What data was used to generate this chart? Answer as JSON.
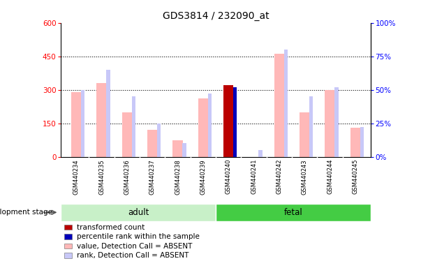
{
  "title": "GDS3814 / 232090_at",
  "samples": [
    "GSM440234",
    "GSM440235",
    "GSM440236",
    "GSM440237",
    "GSM440238",
    "GSM440239",
    "GSM440240",
    "GSM440241",
    "GSM440242",
    "GSM440243",
    "GSM440244",
    "GSM440245"
  ],
  "values": [
    290,
    330,
    200,
    120,
    75,
    260,
    320,
    0,
    460,
    200,
    300,
    130
  ],
  "ranks": [
    50,
    65,
    45,
    25,
    10,
    47,
    52,
    5,
    80,
    45,
    52,
    22
  ],
  "detection": [
    "A",
    "A",
    "A",
    "A",
    "A",
    "A",
    "P",
    "A",
    "A",
    "A",
    "A",
    "A"
  ],
  "ylim_left": [
    0,
    600
  ],
  "ylim_right": [
    0,
    100
  ],
  "yticks_left": [
    0,
    150,
    300,
    450,
    600
  ],
  "yticks_right": [
    0,
    25,
    50,
    75,
    100
  ],
  "color_absent_val": "#ffb8b8",
  "color_absent_rank": "#c8c8f8",
  "color_present_val": "#bb0000",
  "color_present_rank": "#0000bb",
  "tick_bg": "#cccccc",
  "adult_bg": "#c8f0c8",
  "fetal_bg": "#44cc44",
  "adult_label": "adult",
  "fetal_label": "fetal",
  "stage_label": "development stage",
  "left_axis_color": "#ff0000",
  "right_axis_color": "#0000ff",
  "legend_items": [
    {
      "color": "#bb0000",
      "label": "transformed count"
    },
    {
      "color": "#0000bb",
      "label": "percentile rank within the sample"
    },
    {
      "color": "#ffb8b8",
      "label": "value, Detection Call = ABSENT"
    },
    {
      "color": "#c8c8f8",
      "label": "rank, Detection Call = ABSENT"
    }
  ]
}
